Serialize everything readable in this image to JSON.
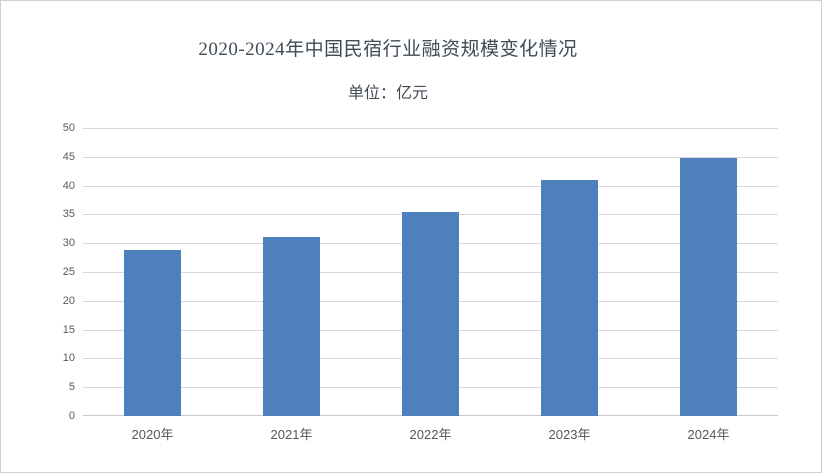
{
  "chart_data": {
    "type": "bar",
    "title": "2020-2024年中国民宿行业融资规模变化情况",
    "subtitle": "单位：亿元",
    "categories": [
      "2020年",
      "2021年",
      "2022年",
      "2023年",
      "2024年"
    ],
    "values": [
      28.8,
      31,
      35.5,
      41,
      44.8
    ],
    "xlabel": "",
    "ylabel": "",
    "ylim": [
      0,
      50
    ],
    "ytick_step": 5,
    "grid": "horizontal-on",
    "legend": "none"
  },
  "colors": {
    "bar_fill": "#4E80BD",
    "gridline": "#d9d9d9",
    "axis_line": "#c9c9c9",
    "title_text": "#414b55",
    "tick_text": "#595959",
    "frame_border": "#cfcfcf"
  }
}
